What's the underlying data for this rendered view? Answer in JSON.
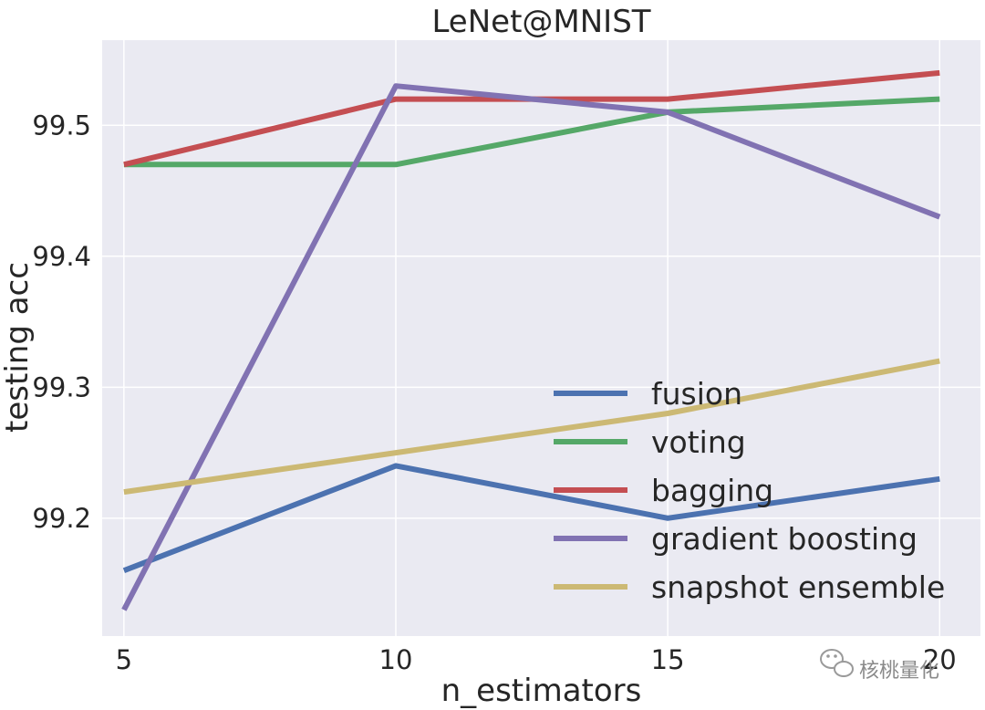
{
  "chart_data": {
    "type": "line",
    "title": "LeNet@MNIST",
    "xlabel": "n_estimators",
    "ylabel": "testing acc",
    "x": [
      5,
      10,
      15,
      20
    ],
    "xticks": [
      "5",
      "10",
      "15",
      "20"
    ],
    "yticks": [
      "99.2",
      "99.3",
      "99.4",
      "99.5"
    ],
    "ytick_values": [
      99.2,
      99.3,
      99.4,
      99.5
    ],
    "xlim": [
      4.6,
      20.75
    ],
    "ylim": [
      99.11,
      99.565
    ],
    "grid": true,
    "legend_position": "lower-right",
    "series": [
      {
        "name": "fusion",
        "values": [
          99.16,
          99.24,
          99.2,
          99.23
        ],
        "color": "#4c72b0"
      },
      {
        "name": "voting",
        "values": [
          99.47,
          99.47,
          99.51,
          99.52
        ],
        "color": "#55a868"
      },
      {
        "name": "bagging",
        "values": [
          99.47,
          99.52,
          99.52,
          99.54
        ],
        "color": "#c44e52"
      },
      {
        "name": "gradient boosting",
        "values": [
          99.13,
          99.53,
          99.51,
          99.43
        ],
        "color": "#8172b2"
      },
      {
        "name": "snapshot ensemble",
        "values": [
          99.22,
          99.25,
          99.28,
          99.32
        ],
        "color": "#ccb974"
      }
    ]
  },
  "watermark": {
    "text": "核桃量化",
    "icon": "wechat-icon"
  },
  "colors": {
    "plot_bg": "#eaeaf2",
    "grid": "#ffffff",
    "text": "#262626"
  }
}
